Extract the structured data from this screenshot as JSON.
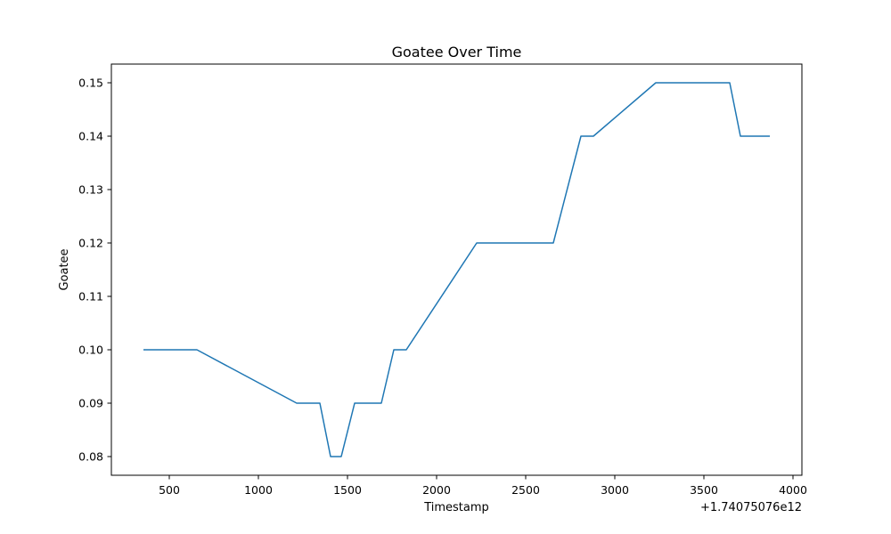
{
  "chart_data": {
    "type": "line",
    "title": "Goatee Over Time",
    "xlabel": "Timestamp",
    "ylabel": "Goatee",
    "x_offset_label": "+1.74075076e12",
    "xlim": [
      175,
      4050
    ],
    "ylim": [
      0.0765,
      0.1535
    ],
    "x_ticks": [
      500,
      1000,
      1500,
      2000,
      2500,
      3000,
      3500,
      4000
    ],
    "x_tick_labels": [
      "500",
      "1000",
      "1500",
      "2000",
      "2500",
      "3000",
      "3500",
      "4000"
    ],
    "y_ticks": [
      0.08,
      0.09,
      0.1,
      0.11,
      0.12,
      0.13,
      0.14,
      0.15
    ],
    "y_tick_labels": [
      "0.08",
      "0.09",
      "0.10",
      "0.11",
      "0.12",
      "0.13",
      "0.14",
      "0.15"
    ],
    "grid": false,
    "line_color": "#1f77b4",
    "series": [
      {
        "x": [
          355,
          655,
          1215,
          1345,
          1405,
          1465,
          1540,
          1690,
          1760,
          1830,
          2225,
          2655,
          2810,
          2880,
          3230,
          3645,
          3705,
          3870
        ],
        "y": [
          0.1,
          0.1,
          0.09,
          0.09,
          0.08,
          0.08,
          0.09,
          0.09,
          0.1,
          0.1,
          0.12,
          0.12,
          0.14,
          0.14,
          0.15,
          0.15,
          0.14,
          0.14
        ]
      }
    ]
  }
}
